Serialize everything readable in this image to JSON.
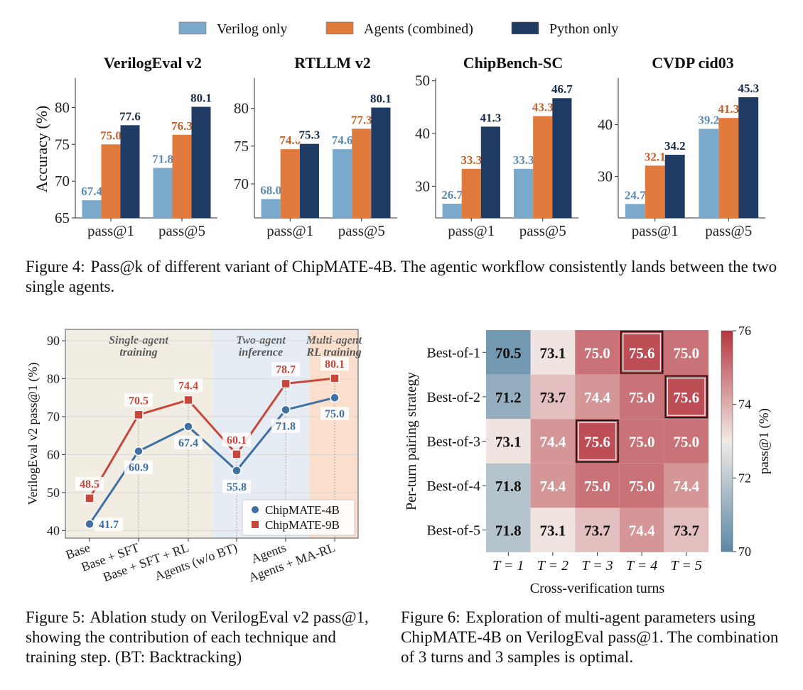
{
  "colors": {
    "verilog": "#7aa9cb",
    "agents": "#e07a3d",
    "python": "#1f3a63",
    "cm4b": "#3f6fa3",
    "cm9b": "#c8463a",
    "region_single": "#f1ede3",
    "region_two": "#e6ecf3",
    "region_multi": "#f9dfcc"
  },
  "figure4": {
    "legend": [
      "Verilog only",
      "Agents (combined)",
      "Python only"
    ],
    "caption_label": "Figure 4:",
    "caption_text": "Pass@k of different variant of ChipMATE-4B. The agentic workflow consistently lands between the two single agents.",
    "panel_tick_labels": [
      "pass@1",
      "pass@5"
    ],
    "ylabel": "Accuracy (%)"
  },
  "chart_data": [
    {
      "type": "bar",
      "title": "VerilogEval v2",
      "categories": [
        "pass@1",
        "pass@5"
      ],
      "ylabel": "Accuracy (%)",
      "ylim": [
        65,
        84
      ],
      "yticks": [
        65,
        70,
        75,
        80
      ],
      "series": [
        {
          "name": "Verilog only",
          "values": [
            67.4,
            71.8
          ]
        },
        {
          "name": "Agents (combined)",
          "values": [
            75.0,
            76.3
          ]
        },
        {
          "name": "Python only",
          "values": [
            77.6,
            80.1
          ]
        }
      ]
    },
    {
      "type": "bar",
      "title": "RTLLM v2",
      "categories": [
        "pass@1",
        "pass@5"
      ],
      "ylim": [
        65.5,
        84
      ],
      "yticks": [
        70,
        75,
        80
      ],
      "series": [
        {
          "name": "Verilog only",
          "values": [
            68.0,
            74.6
          ]
        },
        {
          "name": "Agents (combined)",
          "values": [
            74.6,
            77.3
          ]
        },
        {
          "name": "Python only",
          "values": [
            75.3,
            80.1
          ]
        }
      ]
    },
    {
      "type": "bar",
      "title": "ChipBench-SC",
      "categories": [
        "pass@1",
        "pass@5"
      ],
      "ylim": [
        24,
        50.5
      ],
      "yticks": [
        30,
        40,
        50
      ],
      "series": [
        {
          "name": "Verilog only",
          "values": [
            26.7,
            33.3
          ]
        },
        {
          "name": "Agents (combined)",
          "values": [
            33.3,
            43.3
          ]
        },
        {
          "name": "Python only",
          "values": [
            41.3,
            46.7
          ]
        }
      ]
    },
    {
      "type": "bar",
      "title": "CVDP cid03",
      "categories": [
        "pass@1",
        "pass@5"
      ],
      "ylim": [
        22,
        49
      ],
      "yticks": [
        30,
        40
      ],
      "series": [
        {
          "name": "Verilog only",
          "values": [
            24.7,
            39.2
          ]
        },
        {
          "name": "Agents (combined)",
          "values": [
            32.1,
            41.3
          ]
        },
        {
          "name": "Python only",
          "values": [
            34.2,
            45.3
          ]
        }
      ]
    },
    {
      "type": "line",
      "categories": [
        "Base",
        "Base + SFT",
        "Base + SFT + RL",
        "Agents (w/o BT)",
        "Agents",
        "Agents + MA-RL"
      ],
      "ylabel": "VerilogEval v2 pass@1 (%)",
      "ylim": [
        38,
        93
      ],
      "yticks": [
        40,
        50,
        60,
        70,
        80,
        90
      ],
      "regions": [
        "Single-agent training",
        "Two-agent inference",
        "Multi-agent RL training"
      ],
      "legend_placement": "lower-right",
      "series": [
        {
          "name": "ChipMATE-4B",
          "values": [
            41.7,
            60.9,
            67.4,
            55.8,
            71.8,
            75.0
          ]
        },
        {
          "name": "ChipMATE-9B",
          "values": [
            48.5,
            70.5,
            74.4,
            60.1,
            78.7,
            80.1
          ]
        }
      ]
    },
    {
      "type": "heatmap",
      "rows": [
        "Best-of-1",
        "Best-of-2",
        "Best-of-3",
        "Best-of-4",
        "Best-of-5"
      ],
      "cols": [
        "T = 1",
        "T = 2",
        "T = 3",
        "T = 4",
        "T = 5"
      ],
      "values": [
        [
          70.5,
          73.1,
          75.0,
          75.6,
          75.0
        ],
        [
          71.2,
          73.7,
          74.4,
          75.0,
          75.6
        ],
        [
          73.1,
          74.4,
          75.6,
          75.0,
          75.0
        ],
        [
          71.8,
          74.4,
          75.0,
          75.0,
          74.4
        ],
        [
          71.8,
          73.1,
          73.7,
          74.4,
          73.7
        ]
      ],
      "highlighted": [
        [
          0,
          3
        ],
        [
          1,
          4
        ],
        [
          2,
          2
        ]
      ],
      "xlabel": "Cross-verification turns",
      "ylabel": "Per-turn pairing strategy",
      "colorbar_label": "pass@1 (%)",
      "colorbar_range": [
        70,
        76
      ],
      "colorbar_ticks": [
        70,
        72,
        74,
        76
      ]
    }
  ],
  "figure5": {
    "caption_label": "Figure 5:",
    "caption_text": "Ablation study on VerilogEval v2 pass@1, showing the contribution of each technique and training step. (BT: Backtracking)",
    "region_labels": [
      [
        "Single-agent",
        "training"
      ],
      [
        "Two-agent",
        "inference"
      ],
      [
        "Multi-agent",
        "RL training"
      ]
    ]
  },
  "figure6": {
    "caption_label": "Figure 6:",
    "caption_text": "Exploration of multi-agent parameters using ChipMATE-4B on VerilogEval pass@1. The combination of 3 turns and 3 samples is optimal."
  }
}
